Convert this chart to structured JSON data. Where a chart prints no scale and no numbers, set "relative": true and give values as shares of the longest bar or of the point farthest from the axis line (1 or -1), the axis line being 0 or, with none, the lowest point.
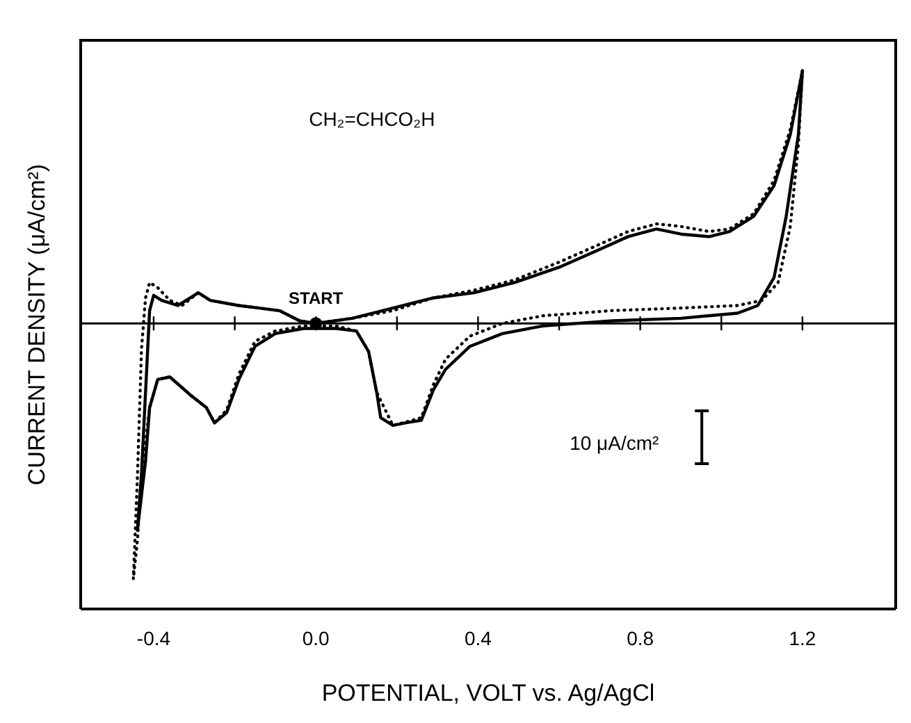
{
  "chart_data": {
    "type": "line",
    "relative": true,
    "xlabel": "POTENTIAL, VOLT vs. Ag/AgCl",
    "ylabel": "CURRENT DENSITY (μA/cm²)",
    "xlim": [
      -0.58,
      1.43
    ],
    "xticks": [
      {
        "value": -0.4,
        "label": "-0.4"
      },
      {
        "value": -0.2,
        "label": null
      },
      {
        "value": 0,
        "label": "0.0"
      },
      {
        "value": 0.2,
        "label": null
      },
      {
        "value": 0.4,
        "label": "0.4"
      },
      {
        "value": 0.6,
        "label": null
      },
      {
        "value": 0.8,
        "label": "0.8"
      },
      {
        "value": 1.0,
        "label": null
      },
      {
        "value": 1.2,
        "label": "1.2"
      }
    ],
    "grid": false,
    "marker": "none",
    "annotations": [
      "CH₂=CHCO₂H",
      "10 μA/cm²",
      {
        "text": "START",
        "x": 0,
        "y": 0
      }
    ],
    "series": [
      {
        "color": "#000000",
        "line_style": "solid",
        "x": [
          0,
          0.09,
          0.19,
          0.29,
          0.39,
          0.49,
          0.6,
          0.7,
          0.77,
          0.84,
          0.9,
          0.97,
          1.02,
          1.08,
          1.13,
          1.17,
          1.2
        ],
        "values": [
          0,
          0.02,
          0.06,
          0.1,
          0.12,
          0.16,
          0.22,
          0.29,
          0.34,
          0.37,
          0.35,
          0.34,
          0.36,
          0.42,
          0.54,
          0.74,
          0.99
        ]
      },
      {
        "color": "#000000",
        "line_style": "solid",
        "x": [
          1.2,
          1.19,
          1.16,
          1.13,
          1.09,
          1.04,
          0.9,
          0.73,
          0.56,
          0.46,
          0.38,
          0.32,
          0.29,
          0.26,
          0.22,
          0.19,
          0.16,
          0.15,
          0.13,
          0.1,
          0.05,
          -0.03,
          -0.1,
          -0.15,
          -0.19,
          -0.22,
          -0.25,
          -0.27,
          -0.31,
          -0.36,
          -0.39,
          -0.41,
          -0.42,
          -0.44
        ],
        "values": [
          0.99,
          0.74,
          0.42,
          0.18,
          0.07,
          0.04,
          0.02,
          0.01,
          -0.01,
          -0.04,
          -0.09,
          -0.18,
          -0.26,
          -0.38,
          -0.39,
          -0.4,
          -0.37,
          -0.27,
          -0.11,
          -0.03,
          -0.02,
          -0.02,
          -0.04,
          -0.09,
          -0.22,
          -0.35,
          -0.39,
          -0.33,
          -0.28,
          -0.21,
          -0.22,
          -0.33,
          -0.54,
          -0.81
        ]
      },
      {
        "color": "#000000",
        "line_style": "solid",
        "x": [
          -0.44,
          -0.43,
          -0.42,
          -0.41,
          -0.4,
          -0.38,
          -0.34,
          -0.29,
          -0.26,
          -0.19,
          -0.14,
          -0.09,
          -0.04,
          0
        ],
        "values": [
          -0.81,
          -0.59,
          -0.27,
          0.05,
          0.11,
          0.09,
          0.07,
          0.12,
          0.09,
          0.07,
          0.06,
          0.05,
          0.01,
          0
        ]
      },
      {
        "color": "#000000",
        "line_style": "dotted",
        "x": [
          0,
          0.09,
          0.19,
          0.29,
          0.39,
          0.49,
          0.6,
          0.7,
          0.77,
          0.84,
          0.9,
          0.97,
          1.02,
          1.08,
          1.13,
          1.17,
          1.2
        ],
        "values": [
          0,
          0.02,
          0.05,
          0.1,
          0.13,
          0.17,
          0.24,
          0.31,
          0.36,
          0.39,
          0.38,
          0.36,
          0.37,
          0.43,
          0.56,
          0.76,
          0.99
        ]
      },
      {
        "color": "#000000",
        "line_style": "dotted",
        "x": [
          1.2,
          1.19,
          1.17,
          1.14,
          1.1,
          1.04,
          0.9,
          0.73,
          0.56,
          0.46,
          0.38,
          0.32,
          0.29,
          0.26,
          0.19,
          0.15,
          0.13,
          0.1,
          0.05,
          -0.03,
          -0.1,
          -0.15,
          -0.19,
          -0.22,
          -0.25,
          -0.27,
          -0.31,
          -0.36,
          -0.39,
          -0.41,
          -0.43,
          -0.44,
          -0.45
        ],
        "values": [
          0.99,
          0.7,
          0.38,
          0.16,
          0.09,
          0.07,
          0.06,
          0.05,
          0.03,
          0,
          -0.05,
          -0.14,
          -0.24,
          -0.37,
          -0.4,
          -0.27,
          -0.11,
          -0.03,
          -0.01,
          -0.01,
          -0.03,
          -0.07,
          -0.2,
          -0.34,
          -0.39,
          -0.33,
          -0.28,
          -0.21,
          -0.22,
          -0.33,
          -0.6,
          -0.85,
          -1.0
        ]
      },
      {
        "color": "#000000",
        "line_style": "dotted",
        "x": [
          -0.45,
          -0.44,
          -0.43,
          -0.42,
          -0.41,
          -0.39,
          -0.36,
          -0.33,
          -0.29,
          -0.26,
          -0.19,
          -0.14,
          -0.09,
          -0.04,
          0
        ],
        "values": [
          -1.0,
          -0.6,
          -0.1,
          0.1,
          0.16,
          0.14,
          0.09,
          0.07,
          0.12,
          0.09,
          0.07,
          0.06,
          0.05,
          0.01,
          0
        ]
      }
    ]
  }
}
